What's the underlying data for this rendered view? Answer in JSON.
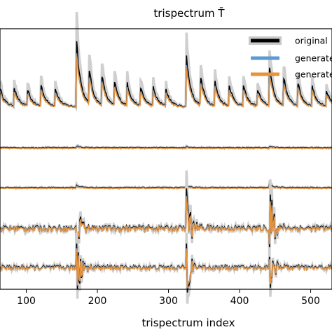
{
  "chart_data": {
    "type": "line",
    "title": "trispectrum T̄",
    "xlabel": "trispectrum index",
    "ylabel": "",
    "xlim": [
      63,
      530
    ],
    "x_ticks": [
      100,
      200,
      300,
      400,
      500
    ],
    "grid": false,
    "legend_position": "top-right",
    "legend": [
      {
        "label": "original",
        "color": "#000000",
        "band_color": "#c8c8c8"
      },
      {
        "label": "generated",
        "color": "#5b9bd5"
      },
      {
        "label": "generated",
        "color": "#e8923a"
      }
    ],
    "panels": [
      {
        "name": "row-1",
        "baseline": 0.0,
        "spikes": [
          {
            "x": 63,
            "h": 0.25
          },
          {
            "x": 82,
            "h": 0.3
          },
          {
            "x": 101,
            "h": 0.26
          },
          {
            "x": 120,
            "h": 0.33
          },
          {
            "x": 140,
            "h": 0.28
          },
          {
            "x": 170,
            "h": 1.0
          },
          {
            "x": 188,
            "h": 0.55
          },
          {
            "x": 206,
            "h": 0.45
          },
          {
            "x": 224,
            "h": 0.35
          },
          {
            "x": 242,
            "h": 0.32
          },
          {
            "x": 260,
            "h": 0.3
          },
          {
            "x": 278,
            "h": 0.28
          },
          {
            "x": 296,
            "h": 0.25
          },
          {
            "x": 325,
            "h": 0.7
          },
          {
            "x": 345,
            "h": 0.42
          },
          {
            "x": 365,
            "h": 0.35
          },
          {
            "x": 385,
            "h": 0.32
          },
          {
            "x": 405,
            "h": 0.3
          },
          {
            "x": 425,
            "h": 0.25
          },
          {
            "x": 442,
            "h": 0.55
          },
          {
            "x": 462,
            "h": 0.4
          },
          {
            "x": 482,
            "h": 0.32
          },
          {
            "x": 502,
            "h": 0.28
          },
          {
            "x": 522,
            "h": 0.22
          }
        ]
      },
      {
        "name": "row-2",
        "baseline": 0.0,
        "spikes": [
          {
            "x": 170,
            "h": 0.2
          },
          {
            "x": 325,
            "h": 0.15
          },
          {
            "x": 442,
            "h": 0.12
          }
        ]
      },
      {
        "name": "row-3",
        "baseline": 0.0,
        "spikes": [
          {
            "x": 170,
            "h": 0.25
          },
          {
            "x": 325,
            "h": 0.2
          },
          {
            "x": 442,
            "h": 0.3
          }
        ]
      },
      {
        "name": "row-4",
        "baseline": 0.0,
        "spikes": [
          {
            "x": 170,
            "h": 0.8
          },
          {
            "x": 325,
            "h": 1.0
          },
          {
            "x": 442,
            "h": 1.0
          }
        ]
      },
      {
        "name": "row-5",
        "baseline": 0.0,
        "spikes": [
          {
            "x": 170,
            "h": 1.0
          },
          {
            "x": 325,
            "h": 0.9
          },
          {
            "x": 442,
            "h": 0.7
          }
        ]
      }
    ]
  }
}
